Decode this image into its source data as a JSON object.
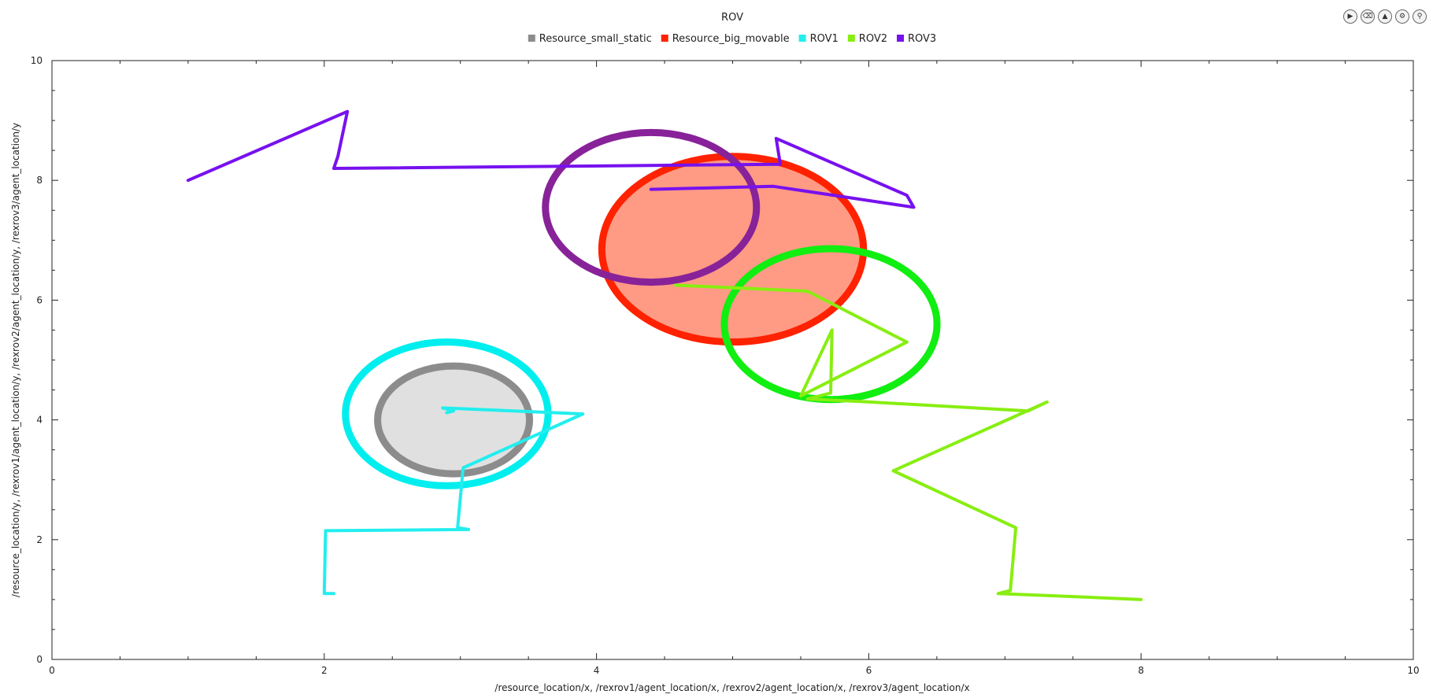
{
  "toolbar": {
    "icons": [
      "play-icon",
      "clear-icon",
      "export-icon",
      "settings-icon",
      "zoom-icon"
    ]
  },
  "chart_data": {
    "type": "scatter",
    "title": "ROV",
    "xlabel": "/resource_location/x, /rexrov1/agent_location/x, /rexrov2/agent_location/x, /rexrov3/agent_location/x",
    "ylabel": "/resource_location/y, /rexrov1/agent_location/y, /rexrov2/agent_location/y, /rexrov3/agent_location/y",
    "xlim": [
      0,
      10
    ],
    "ylim": [
      0,
      10
    ],
    "xticks": [
      "0",
      "2",
      "4",
      "6",
      "8",
      "10"
    ],
    "yticks": [
      "0",
      "2",
      "4",
      "6",
      "8",
      "10"
    ],
    "grid": false,
    "legend_position": "top-center",
    "legend": [
      {
        "name": "Resource_small_static",
        "color": "#8c8c8c"
      },
      {
        "name": "Resource_big_movable",
        "color": "#ff2200"
      },
      {
        "name": "ROV1",
        "color": "#22eeee"
      },
      {
        "name": "ROV2",
        "color": "#88ee11"
      },
      {
        "name": "ROV3",
        "color": "#7711ee"
      }
    ],
    "circles": [
      {
        "name": "Resource_small_static",
        "x": 2.95,
        "y": 4.0,
        "r": 0.9,
        "color": "#8c8c8c",
        "fill": "#e0e0e0"
      },
      {
        "name": "Resource_big_movable",
        "x": 5.0,
        "y": 6.85,
        "r": 1.55,
        "color": "#ff2200",
        "fill": "#ff9a85"
      },
      {
        "name": "ROV1 range",
        "x": 2.9,
        "y": 4.1,
        "r": 1.2,
        "color": "#00eeee",
        "fill": "none"
      },
      {
        "name": "ROV2 range",
        "x": 5.72,
        "y": 5.6,
        "r": 1.26,
        "color": "#11ee11",
        "fill": "none"
      },
      {
        "name": "ROV3 range",
        "x": 4.4,
        "y": 7.55,
        "r": 1.25,
        "color": "#882299",
        "fill": "none"
      }
    ],
    "series": [
      {
        "name": "ROV1",
        "color": "#22eeee",
        "x": [
          2.07,
          2.0,
          2.01,
          3.06,
          2.98,
          3.02,
          3.9,
          2.87,
          2.95,
          2.9
        ],
        "y": [
          1.1,
          1.1,
          2.15,
          2.17,
          2.2,
          3.2,
          4.1,
          4.2,
          4.15,
          4.12
        ]
      },
      {
        "name": "ROV2",
        "color": "#88ee11",
        "x": [
          8.0,
          7.5,
          6.95,
          7.04,
          7.08,
          6.18,
          7.31,
          7.17,
          6.0,
          5.55,
          5.72,
          5.73,
          5.5,
          6.28,
          5.55,
          4.58
        ],
        "y": [
          1.0,
          1.05,
          1.1,
          1.15,
          2.2,
          3.15,
          4.3,
          4.15,
          4.3,
          4.35,
          4.45,
          5.5,
          4.4,
          5.3,
          6.15,
          6.25
        ]
      },
      {
        "name": "ROV3",
        "color": "#7711ee",
        "x": [
          1.0,
          2.17,
          2.1,
          2.07,
          5.35,
          5.32,
          6.28,
          6.33,
          5.3,
          4.4
        ],
        "y": [
          8.0,
          9.15,
          8.4,
          8.2,
          8.27,
          8.7,
          7.75,
          7.55,
          7.9,
          7.85
        ]
      }
    ]
  }
}
